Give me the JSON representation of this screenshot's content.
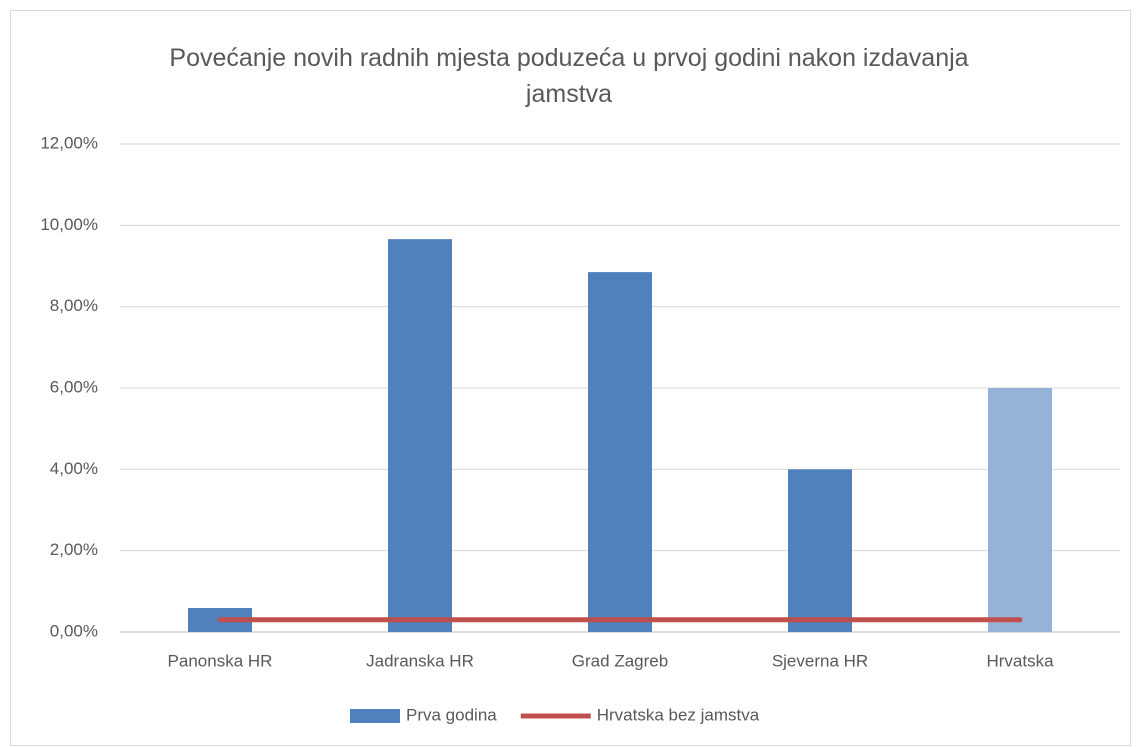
{
  "chart_data": {
    "type": "bar",
    "title": "Povećanje novih radnih mjesta poduzeća u prvoj godini nakon izdavanja jamstva",
    "categories": [
      "Panonska HR",
      "Jadranska HR",
      "Grad Zagreb",
      "Sjeverna HR",
      "Hrvatska"
    ],
    "series": [
      {
        "name": "Prva godina",
        "type": "bar",
        "color": "#4f81bd",
        "colors": [
          "#4f81bd",
          "#4f81bd",
          "#4f81bd",
          "#4f81bd",
          "#95b3d7"
        ],
        "values": [
          0.59,
          9.66,
          8.85,
          4.0,
          6.0
        ]
      },
      {
        "name": "Hrvatska bez jamstva",
        "type": "line",
        "color": "#c0504d",
        "values": [
          0.3,
          0.3,
          0.3,
          0.3,
          0.3
        ]
      }
    ],
    "ylim": [
      0,
      12
    ],
    "yticks": [
      {
        "value": 0,
        "label": "0,00%"
      },
      {
        "value": 2,
        "label": "2,00%"
      },
      {
        "value": 4,
        "label": "4,00%"
      },
      {
        "value": 6,
        "label": "6,00%"
      },
      {
        "value": 8,
        "label": "8,00%"
      },
      {
        "value": 10,
        "label": "10,00%"
      },
      {
        "value": 12,
        "label": "12,00%"
      }
    ],
    "grid": true,
    "legend": "bottom"
  }
}
